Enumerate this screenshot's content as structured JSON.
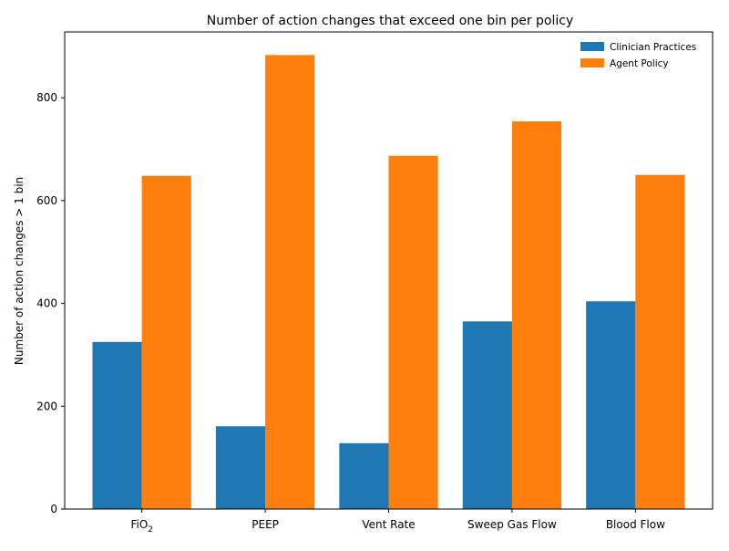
{
  "chart_data": {
    "type": "bar",
    "title": "Number of action changes that exceed one bin per policy",
    "xlabel": "",
    "ylabel": "Number of action changes > 1 bin",
    "categories": [
      {
        "base": "FiO",
        "sub": "2"
      },
      {
        "base": "PEEP",
        "sub": ""
      },
      {
        "base": "Vent Rate",
        "sub": ""
      },
      {
        "base": "Sweep Gas Flow",
        "sub": ""
      },
      {
        "base": "Blood Flow",
        "sub": ""
      }
    ],
    "series": [
      {
        "name": "Clinician Practices",
        "color": "#1f77b4",
        "values": [
          325,
          161,
          128,
          365,
          404
        ]
      },
      {
        "name": "Agent Policy",
        "color": "#ff7f0e",
        "values": [
          648,
          883,
          687,
          754,
          650
        ]
      }
    ],
    "ylim": [
      0,
      928
    ],
    "yticks": [
      0,
      200,
      400,
      600,
      800
    ],
    "grid": false,
    "legend_position": "top-right"
  }
}
